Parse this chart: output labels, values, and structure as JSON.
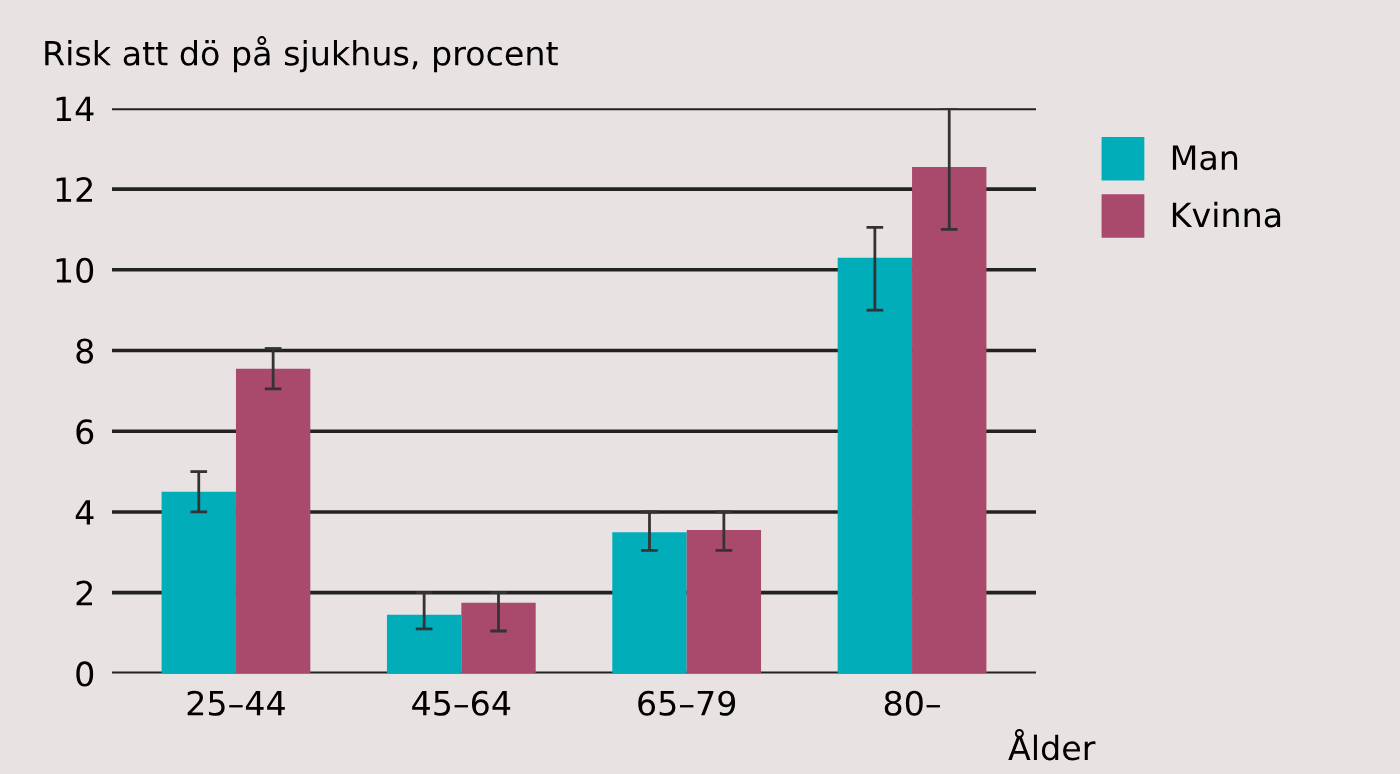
{
  "chart_data": {
    "type": "bar",
    "ylabel": "Risk att dö på sjukhus, procent",
    "xlabel": "Ålder",
    "categories": [
      "25–44",
      "45–64",
      "65–79",
      "80–"
    ],
    "series": [
      {
        "name": "Man",
        "color": "#00adb9",
        "values": [
          4.5,
          1.45,
          3.5,
          10.3
        ],
        "errors": [
          [
            4.0,
            5.0
          ],
          [
            1.1,
            2.0
          ],
          [
            3.05,
            4.0
          ],
          [
            9.0,
            11.05
          ]
        ]
      },
      {
        "name": "Kvinna",
        "color": "#a94a6c",
        "values": [
          7.55,
          1.75,
          3.55,
          12.55
        ],
        "errors": [
          [
            7.05,
            8.05
          ],
          [
            1.05,
            2.0
          ],
          [
            3.05,
            4.0
          ],
          [
            11.0,
            14.0
          ]
        ]
      }
    ],
    "ylim": [
      0,
      14
    ],
    "yticks": [
      0,
      2,
      4,
      6,
      8,
      10,
      12,
      14
    ],
    "grid": "y",
    "legend": "top right"
  }
}
